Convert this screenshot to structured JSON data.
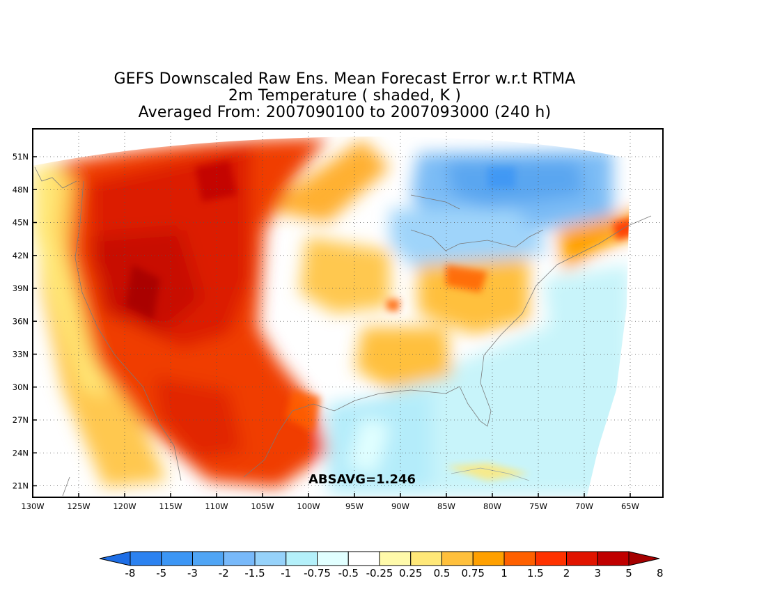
{
  "title": {
    "line1": "GEFS Downscaled Raw Ens. Mean Forecast Error w.r.t RTMA",
    "line2": "2m Temperature ( shaded, K )",
    "line3": "Averaged From: 2007090100 to 2007093000 (240 h)"
  },
  "annotation": "ABSAVG=1.246",
  "map": {
    "lon_range": [
      -130,
      -62
    ],
    "lat_range": [
      19.5,
      52.5
    ],
    "x_ticks": [
      "130W",
      "125W",
      "120W",
      "115W",
      "110W",
      "105W",
      "100W",
      "95W",
      "90W",
      "85W",
      "80W",
      "75W",
      "70W",
      "65W"
    ],
    "y_ticks": [
      "21N",
      "24N",
      "27N",
      "30N",
      "33N",
      "36N",
      "39N",
      "42N",
      "45N",
      "48N",
      "51N"
    ],
    "grid": true
  },
  "colorbar": {
    "labels": [
      "-8",
      "-5",
      "-3",
      "-2",
      "-1.5",
      "-1",
      "-0.75",
      "-0.5",
      "-0.25",
      "0.25",
      "0.5",
      "0.75",
      "1",
      "1.5",
      "2",
      "3",
      "5",
      "8"
    ],
    "colors": [
      "#1e6ee6",
      "#2c82f0",
      "#3c96f5",
      "#50a5f5",
      "#78b9fa",
      "#96d2fa",
      "#b4f0fa",
      "#e1ffff",
      "#ffffff",
      "#fffaaa",
      "#ffe878",
      "#ffc03c",
      "#ffa000",
      "#ff6000",
      "#ff3200",
      "#e11400",
      "#c00000",
      "#a50000"
    ]
  }
}
